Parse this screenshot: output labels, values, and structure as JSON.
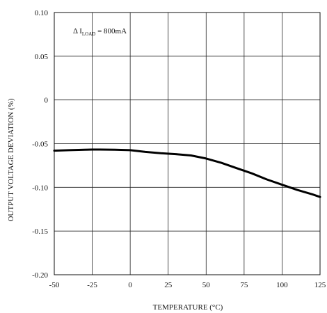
{
  "chart_data": {
    "type": "line",
    "title": "",
    "xlabel": "TEMPERATURE (°C)",
    "ylabel": "OUTPUT VOLTAGE DEVIATION (%)",
    "xlim": [
      -50,
      125
    ],
    "ylim": [
      -0.2,
      0.1
    ],
    "x_ticks": [
      -50,
      -25,
      0,
      25,
      50,
      75,
      100,
      125
    ],
    "x_tick_labels": [
      "-50",
      "-25",
      "0",
      "25",
      "50",
      "75",
      "100",
      "125"
    ],
    "y_ticks": [
      -0.2,
      -0.15,
      -0.1,
      -0.05,
      0,
      0.05,
      0.1
    ],
    "y_tick_labels": [
      "-0.20",
      "-0.15",
      "-0.10",
      "-0.05",
      "0",
      "0.05",
      "0.10"
    ],
    "grid": true,
    "annotation": {
      "prefix": "Δ I",
      "subscript": "LOAD",
      "suffix": " = 800mA"
    },
    "series": [
      {
        "x": [
          -50,
          -40,
          -30,
          -25,
          -20,
          -10,
          0,
          10,
          20,
          30,
          40,
          50,
          60,
          70,
          80,
          90,
          100,
          110,
          120,
          125
        ],
        "y": [
          -0.058,
          -0.0575,
          -0.057,
          -0.0568,
          -0.0568,
          -0.057,
          -0.0575,
          -0.0595,
          -0.061,
          -0.062,
          -0.0635,
          -0.067,
          -0.072,
          -0.078,
          -0.084,
          -0.091,
          -0.097,
          -0.103,
          -0.108,
          -0.111
        ]
      }
    ]
  }
}
